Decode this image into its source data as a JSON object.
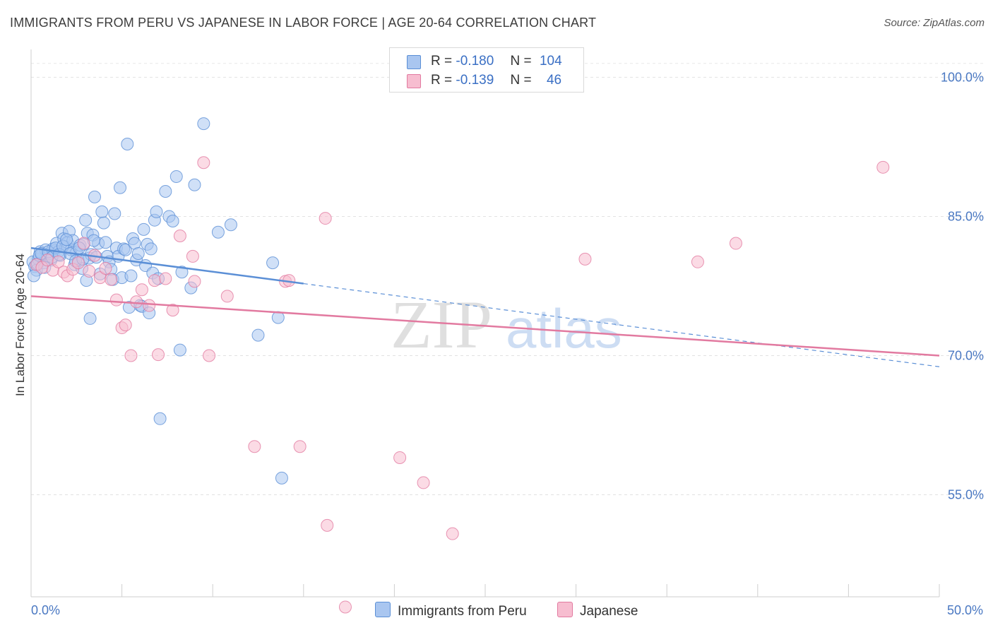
{
  "title": "IMMIGRANTS FROM PERU VS JAPANESE IN LABOR FORCE | AGE 20-64 CORRELATION CHART",
  "source": "Source: ZipAtlas.com",
  "watermark": {
    "zip": "ZIP",
    "atlas": "atlas"
  },
  "legend": {
    "rows": [
      {
        "r_label": "R =",
        "r_value": "-0.180",
        "n_label": "N =",
        "n_value": "104",
        "color": "#a9c6f0",
        "border": "#5b8fd6"
      },
      {
        "r_label": "R =",
        "r_value": "-0.139",
        "n_label": "N =",
        "n_value": "46",
        "color": "#f7bdd0",
        "border": "#e27aa0"
      }
    ]
  },
  "chart_data": {
    "type": "scatter",
    "title": "IMMIGRANTS FROM PERU VS JAPANESE IN LABOR FORCE | AGE 20-64 CORRELATION CHART",
    "xlabel": "",
    "ylabel": "In Labor Force | Age 20-64",
    "xlim": [
      0,
      50
    ],
    "ylim": [
      44,
      103
    ],
    "x_tick_labels": [
      "0.0%",
      "50.0%"
    ],
    "y_ticks": [
      55,
      70,
      85,
      100
    ],
    "y_tick_labels": [
      "55.0%",
      "70.0%",
      "85.0%",
      "100.0%"
    ],
    "grid": true,
    "series": [
      {
        "name": "Immigrants from Peru",
        "color": "#5b8fd6",
        "fill": "#a9c6f0",
        "trend": {
          "x": [
            0,
            15,
            50
          ],
          "y": [
            81.6,
            77.9,
            68.8
          ],
          "solid_until": 15
        },
        "points": [
          [
            0.1,
            80.1
          ],
          [
            0.2,
            79.6
          ],
          [
            0.3,
            79.2
          ],
          [
            0.4,
            80.4
          ],
          [
            0.5,
            81.2
          ],
          [
            0.6,
            80.9
          ],
          [
            0.7,
            80.0
          ],
          [
            0.8,
            81.4
          ],
          [
            0.9,
            80.7
          ],
          [
            1.0,
            81.0
          ],
          [
            1.1,
            80.3
          ],
          [
            1.2,
            81.5
          ],
          [
            1.3,
            81.3
          ],
          [
            1.4,
            82.1
          ],
          [
            1.5,
            81.2
          ],
          [
            1.6,
            80.8
          ],
          [
            1.7,
            83.2
          ],
          [
            1.8,
            82.6
          ],
          [
            1.9,
            81.7
          ],
          [
            2.0,
            82.2
          ],
          [
            2.1,
            83.4
          ],
          [
            2.2,
            81.4
          ],
          [
            2.3,
            82.4
          ],
          [
            2.4,
            79.8
          ],
          [
            2.5,
            81.1
          ],
          [
            2.6,
            80.2
          ],
          [
            2.7,
            81.9
          ],
          [
            2.8,
            79.4
          ],
          [
            2.9,
            82.0
          ],
          [
            3.0,
            84.6
          ],
          [
            3.1,
            83.2
          ],
          [
            3.2,
            80.5
          ],
          [
            3.3,
            80.9
          ],
          [
            3.4,
            83.0
          ],
          [
            3.5,
            87.1
          ],
          [
            3.6,
            80.6
          ],
          [
            3.7,
            82.1
          ],
          [
            3.8,
            78.8
          ],
          [
            3.9,
            85.5
          ],
          [
            4.0,
            84.3
          ],
          [
            4.1,
            82.2
          ],
          [
            4.2,
            80.7
          ],
          [
            4.3,
            80.1
          ],
          [
            4.4,
            79.3
          ],
          [
            4.5,
            78.2
          ],
          [
            4.6,
            85.3
          ],
          [
            4.7,
            81.6
          ],
          [
            4.8,
            80.7
          ],
          [
            4.9,
            88.1
          ],
          [
            5.0,
            78.4
          ],
          [
            5.1,
            81.5
          ],
          [
            5.2,
            81.4
          ],
          [
            5.3,
            92.8
          ],
          [
            5.4,
            75.2
          ],
          [
            5.5,
            78.6
          ],
          [
            5.6,
            82.6
          ],
          [
            5.7,
            82.1
          ],
          [
            5.8,
            80.3
          ],
          [
            5.9,
            81.0
          ],
          [
            6.0,
            75.4
          ],
          [
            6.1,
            75.3
          ],
          [
            6.2,
            83.6
          ],
          [
            6.3,
            79.7
          ],
          [
            6.4,
            82.0
          ],
          [
            6.5,
            74.6
          ],
          [
            6.6,
            81.5
          ],
          [
            6.7,
            78.9
          ],
          [
            6.8,
            84.6
          ],
          [
            6.9,
            85.5
          ],
          [
            7.0,
            78.3
          ],
          [
            7.1,
            63.2
          ],
          [
            7.4,
            87.7
          ],
          [
            7.6,
            85.0
          ],
          [
            7.8,
            84.5
          ],
          [
            8.0,
            89.3
          ],
          [
            8.2,
            70.6
          ],
          [
            8.3,
            79.0
          ],
          [
            8.8,
            77.3
          ],
          [
            9.0,
            88.4
          ],
          [
            9.5,
            95.0
          ],
          [
            10.3,
            83.3
          ],
          [
            11.0,
            84.1
          ],
          [
            12.5,
            72.2
          ],
          [
            13.3,
            80.0
          ],
          [
            13.6,
            74.1
          ],
          [
            13.8,
            56.8
          ],
          [
            0.15,
            78.6
          ],
          [
            0.35,
            79.9
          ],
          [
            0.45,
            80.8
          ],
          [
            0.55,
            81.0
          ],
          [
            0.75,
            79.5
          ],
          [
            0.95,
            81.2
          ],
          [
            1.15,
            80.6
          ],
          [
            1.35,
            81.6
          ],
          [
            1.55,
            80.9
          ],
          [
            1.75,
            81.8
          ],
          [
            1.95,
            82.5
          ],
          [
            2.15,
            81.0
          ],
          [
            2.45,
            80.2
          ],
          [
            2.65,
            81.6
          ],
          [
            2.85,
            80.4
          ],
          [
            3.05,
            78.1
          ],
          [
            3.25,
            74.0
          ],
          [
            3.45,
            82.4
          ]
        ]
      },
      {
        "name": "Japanese",
        "color": "#e27aa0",
        "fill": "#f7bdd0",
        "trend": {
          "x": [
            0,
            50
          ],
          "y": [
            76.4,
            70.0
          ],
          "solid_until": 50
        },
        "points": [
          [
            0.3,
            79.8
          ],
          [
            0.6,
            79.5
          ],
          [
            0.9,
            80.3
          ],
          [
            1.2,
            79.2
          ],
          [
            1.5,
            80.1
          ],
          [
            1.8,
            79.0
          ],
          [
            2.0,
            78.6
          ],
          [
            2.3,
            79.3
          ],
          [
            2.6,
            80.0
          ],
          [
            2.9,
            82.1
          ],
          [
            3.2,
            79.1
          ],
          [
            3.5,
            80.8
          ],
          [
            3.8,
            78.4
          ],
          [
            4.1,
            79.4
          ],
          [
            4.4,
            78.2
          ],
          [
            4.7,
            76.0
          ],
          [
            5.0,
            73.0
          ],
          [
            5.2,
            73.3
          ],
          [
            5.5,
            70.0
          ],
          [
            5.8,
            75.8
          ],
          [
            6.1,
            77.1
          ],
          [
            6.5,
            75.4
          ],
          [
            6.8,
            78.1
          ],
          [
            7.0,
            70.1
          ],
          [
            7.4,
            78.3
          ],
          [
            7.8,
            74.9
          ],
          [
            8.2,
            82.9
          ],
          [
            8.9,
            80.7
          ],
          [
            9.0,
            78.0
          ],
          [
            9.5,
            90.8
          ],
          [
            9.8,
            70.0
          ],
          [
            10.8,
            76.4
          ],
          [
            12.3,
            60.2
          ],
          [
            14.0,
            78.0
          ],
          [
            14.2,
            78.1
          ],
          [
            14.8,
            60.2
          ],
          [
            16.2,
            84.8
          ],
          [
            16.3,
            51.7
          ],
          [
            17.3,
            42.9
          ],
          [
            20.3,
            59.0
          ],
          [
            21.6,
            56.3
          ],
          [
            23.2,
            50.8
          ],
          [
            30.5,
            80.4
          ],
          [
            36.7,
            80.1
          ],
          [
            38.8,
            82.1
          ],
          [
            46.9,
            90.3
          ]
        ]
      }
    ]
  },
  "bottom_legend": [
    {
      "label": "Immigrants from Peru",
      "color": "#a9c6f0",
      "border": "#5b8fd6"
    },
    {
      "label": "Japanese",
      "color": "#f7bdd0",
      "border": "#e27aa0"
    }
  ]
}
